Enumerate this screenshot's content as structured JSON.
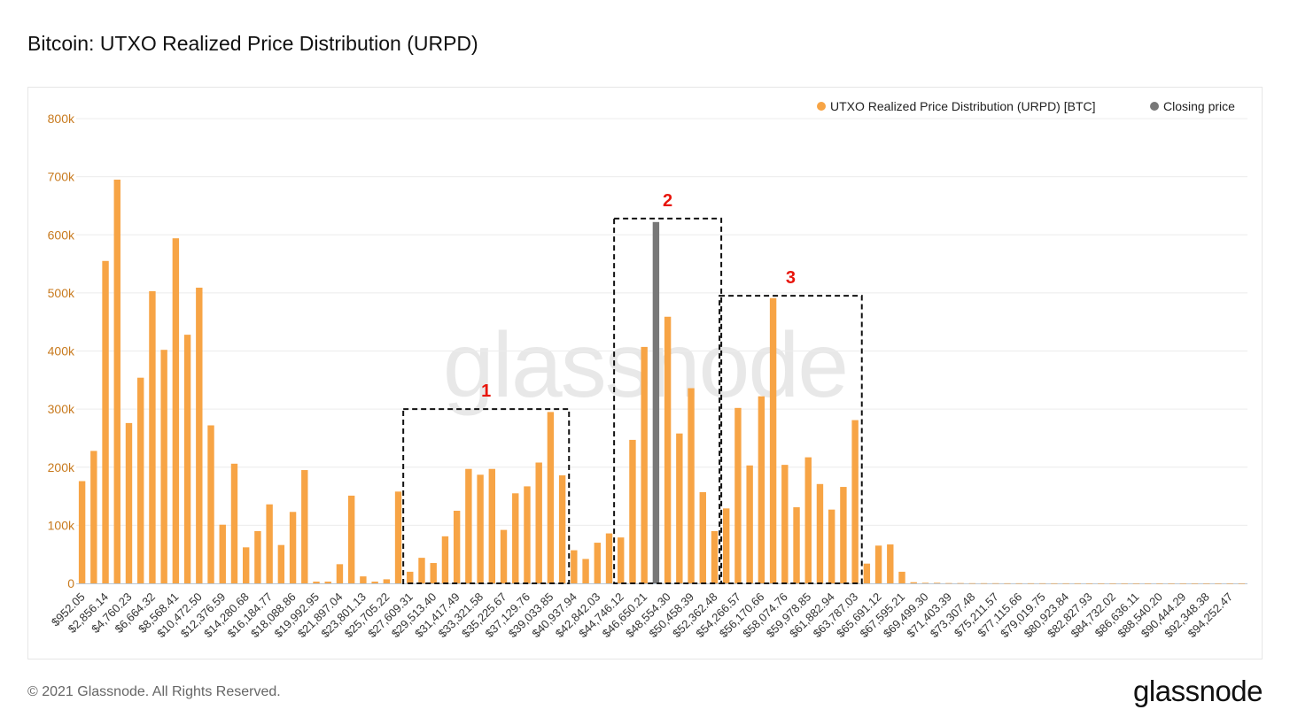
{
  "title": "Bitcoin: UTXO Realized Price Distribution (URPD)",
  "watermark": "glassnode",
  "footer": {
    "copyright": "© 2021 Glassnode. All Rights Reserved.",
    "logo": "glassnode"
  },
  "colors": {
    "urpd": "#F7A445",
    "closing": "#787878",
    "ytick": "#C87A1E",
    "grid": "#ececec",
    "annotation": "#E8150B"
  },
  "chart_data": {
    "type": "bar",
    "title": "Bitcoin: UTXO Realized Price Distribution (URPD)",
    "ylim": [
      0,
      800000
    ],
    "grid": true,
    "legend_position": "top-right",
    "yticks": [
      {
        "value": 0,
        "label": "0"
      },
      {
        "value": 100000,
        "label": "100k"
      },
      {
        "value": 200000,
        "label": "200k"
      },
      {
        "value": 300000,
        "label": "300k"
      },
      {
        "value": 400000,
        "label": "400k"
      },
      {
        "value": 500000,
        "label": "500k"
      },
      {
        "value": 600000,
        "label": "600k"
      },
      {
        "value": 700000,
        "label": "700k"
      },
      {
        "value": 800000,
        "label": "800k"
      }
    ],
    "xtick_labels": [
      "$952.05",
      "$2,856.14",
      "$4,760.23",
      "$6,664.32",
      "$8,568.41",
      "$10,472.50",
      "$12,376.59",
      "$14,280.68",
      "$16,184.77",
      "$18,088.86",
      "$19,992.95",
      "$21,897.04",
      "$23,801.13",
      "$25,705.22",
      "$27,609.31",
      "$29,513.40",
      "$31,417.49",
      "$33,321.58",
      "$35,225.67",
      "$37,129.76",
      "$39,033.85",
      "$40,937.94",
      "$42,842.03",
      "$44,746.12",
      "$46,650.21",
      "$48,554.30",
      "$50,458.39",
      "$52,362.48",
      "$54,266.57",
      "$56,170.66",
      "$58,074.76",
      "$59,978.85",
      "$61,882.94",
      "$63,787.03",
      "$65,691.12",
      "$67,595.21",
      "$69,499.30",
      "$71,403.39",
      "$73,307.48",
      "$75,211.57",
      "$77,115.66",
      "$79,019.75",
      "$80,923.84",
      "$82,827.93",
      "$84,732.02",
      "$86,636.11",
      "$88,540.20",
      "$90,444.29",
      "$92,348.38",
      "$94,252.47"
    ],
    "bins_per_label": 2,
    "series": [
      {
        "name": "UTXO Realized Price Distribution (URPD) [BTC]",
        "color": "#F7A445",
        "values": [
          176000,
          228000,
          555000,
          695000,
          276000,
          354000,
          503000,
          402000,
          594000,
          428000,
          509000,
          272000,
          101000,
          206000,
          62000,
          90000,
          136000,
          66000,
          123000,
          195000,
          3000,
          3000,
          33000,
          151000,
          12000,
          3000,
          7000,
          158000,
          20000,
          44000,
          35000,
          81000,
          125000,
          197000,
          187000,
          197000,
          92000,
          155000,
          167000,
          208000,
          295000,
          186000,
          57000,
          42000,
          70000,
          86000,
          79000,
          247000,
          407000,
          0,
          459000,
          258000,
          336000,
          157000,
          90000,
          129000,
          302000,
          203000,
          322000,
          491000,
          204000,
          131000,
          217000,
          171000,
          127000,
          166000,
          281000,
          34000,
          65000,
          67000,
          20000,
          2000,
          1000,
          1000,
          500,
          500,
          300,
          300,
          300,
          200,
          200,
          200,
          200,
          150,
          150,
          150,
          100,
          100,
          100,
          100,
          100,
          100,
          100,
          100,
          100,
          100,
          100,
          100,
          100,
          100
        ]
      },
      {
        "name": "Closing price",
        "color": "#787878",
        "bar_index": 49,
        "value": 622000
      }
    ],
    "annotations": [
      {
        "label": "1",
        "x_range_bins": [
          28,
          41
        ],
        "y_range": [
          0,
          300000
        ]
      },
      {
        "label": "2",
        "x_range_bins": [
          46,
          54
        ],
        "y_range": [
          0,
          628000
        ]
      },
      {
        "label": "3",
        "x_range_bins": [
          55,
          66
        ],
        "y_range": [
          0,
          495000
        ]
      }
    ]
  }
}
